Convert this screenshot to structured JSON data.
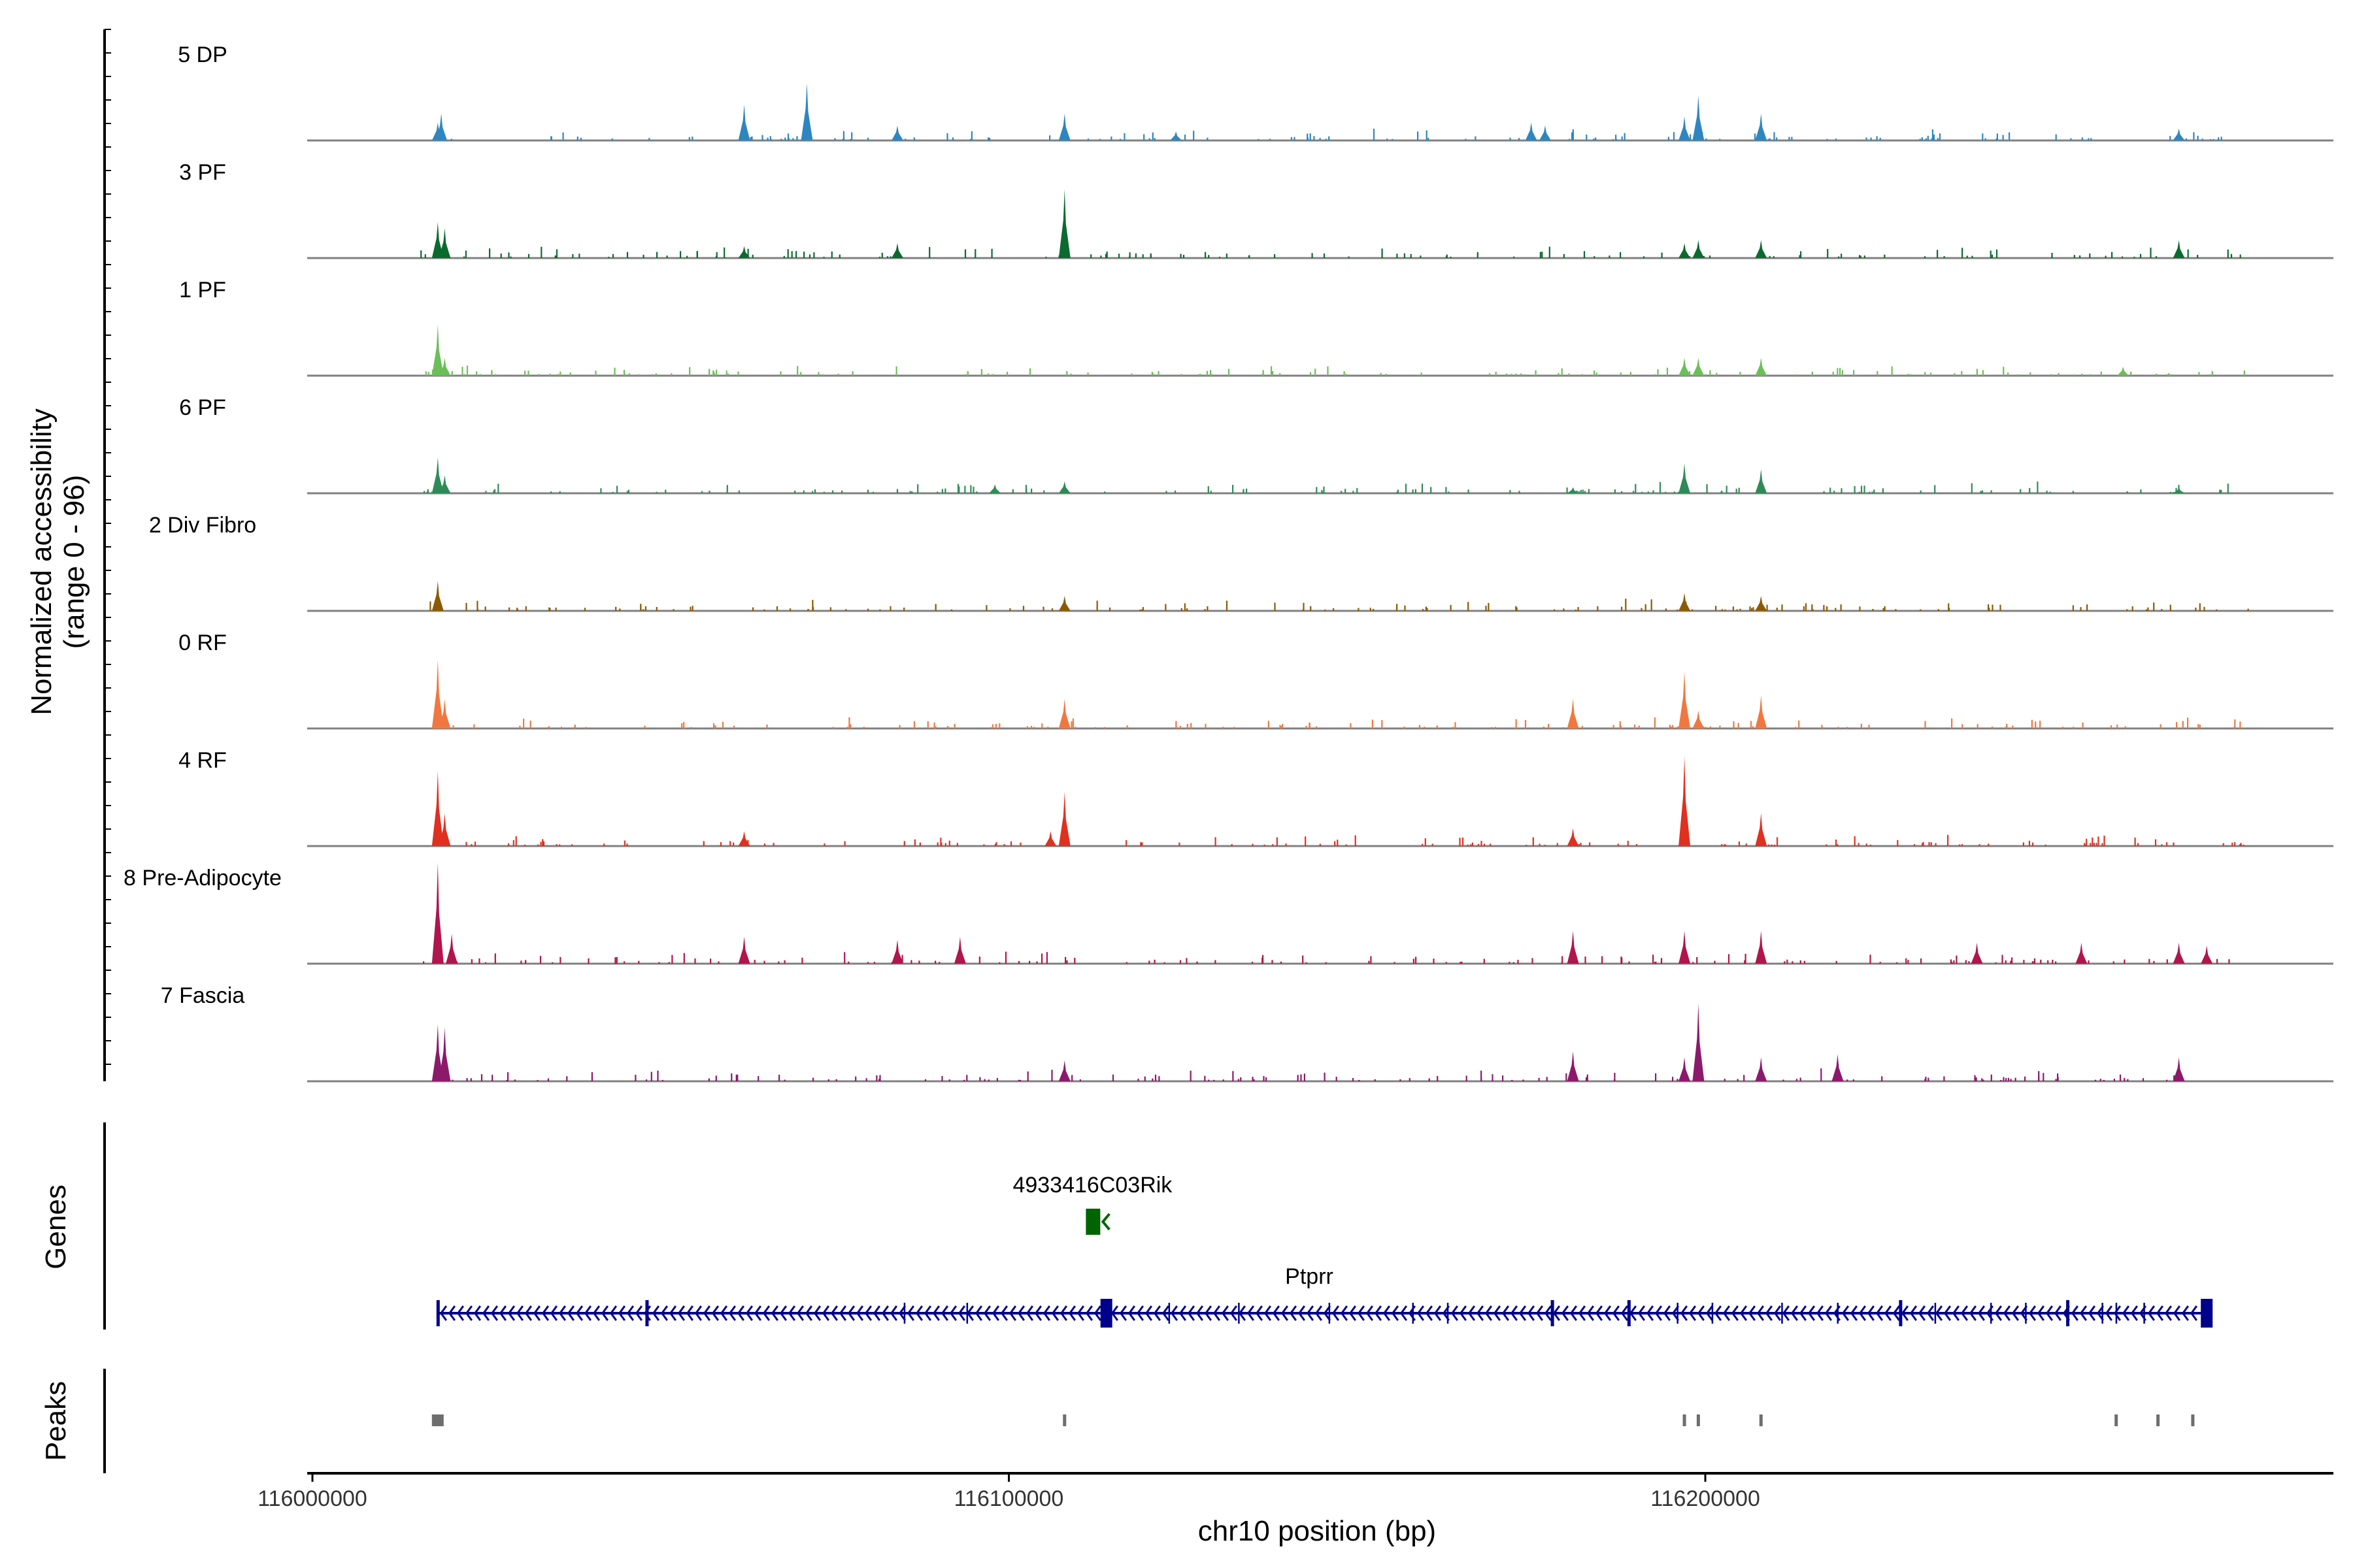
{
  "chart_data": {
    "type": "area",
    "title": "",
    "ylabel": "Normalized accessibility",
    "ylabel_range": "(range 0 - 96)",
    "xlabel": "chr10 position (bp)",
    "xlim": [
      115998000,
      116290000
    ],
    "ylim": [
      0,
      96
    ],
    "x_ticks": [
      "116000000",
      "116100000",
      "116200000"
    ],
    "x_tick_values": [
      116000000,
      116100000,
      116200000
    ],
    "baseline_color": "#808080",
    "series": [
      {
        "name": "5 DP",
        "color": "#2E86C1",
        "peaks": [
          [
            116018000,
            30
          ],
          [
            116018500,
            45
          ],
          [
            116062000,
            60
          ],
          [
            116071000,
            96
          ],
          [
            116084000,
            25
          ],
          [
            116108000,
            45
          ],
          [
            116124000,
            15
          ],
          [
            116175000,
            30
          ],
          [
            116177000,
            25
          ],
          [
            116197000,
            40
          ],
          [
            116199000,
            75
          ],
          [
            116208000,
            45
          ],
          [
            116268000,
            20
          ]
        ]
      },
      {
        "name": "3 PF",
        "color": "#0B6B2E",
        "peaks": [
          [
            116018000,
            60
          ],
          [
            116019000,
            50
          ],
          [
            116062000,
            20
          ],
          [
            116084000,
            25
          ],
          [
            116108000,
            115
          ],
          [
            116197000,
            25
          ],
          [
            116199000,
            30
          ],
          [
            116208000,
            30
          ],
          [
            116268000,
            30
          ]
        ]
      },
      {
        "name": "1 PF",
        "color": "#6BBF59",
        "peaks": [
          [
            116018000,
            85
          ],
          [
            116019000,
            30
          ],
          [
            116197000,
            30
          ],
          [
            116199000,
            30
          ],
          [
            116208000,
            30
          ],
          [
            116260000,
            15
          ]
        ]
      },
      {
        "name": "6 PF",
        "color": "#2E8B57",
        "peaks": [
          [
            116018000,
            60
          ],
          [
            116019000,
            30
          ],
          [
            116098000,
            15
          ],
          [
            116108000,
            20
          ],
          [
            116181000,
            10
          ],
          [
            116197000,
            50
          ],
          [
            116208000,
            40
          ],
          [
            116268000,
            10
          ]
        ]
      },
      {
        "name": "2 Div Fibro",
        "color": "#8B5A00",
        "peaks": [
          [
            116018000,
            50
          ],
          [
            116108000,
            25
          ],
          [
            116197000,
            30
          ],
          [
            116208000,
            25
          ]
        ]
      },
      {
        "name": "0 RF",
        "color": "#F07840",
        "peaks": [
          [
            116018000,
            115
          ],
          [
            116019000,
            50
          ],
          [
            116108000,
            50
          ],
          [
            116181000,
            50
          ],
          [
            116197000,
            95
          ],
          [
            116199000,
            30
          ],
          [
            116208000,
            55
          ]
        ]
      },
      {
        "name": "4 RF",
        "color": "#E03020",
        "peaks": [
          [
            116018000,
            125
          ],
          [
            116019000,
            55
          ],
          [
            116062000,
            25
          ],
          [
            116106000,
            25
          ],
          [
            116108000,
            90
          ],
          [
            116181000,
            30
          ],
          [
            116197000,
            150
          ],
          [
            116208000,
            55
          ]
        ]
      },
      {
        "name": "8 Pre-Adipocyte",
        "color": "#B0154B",
        "peaks": [
          [
            116018000,
            175
          ],
          [
            116020000,
            50
          ],
          [
            116062000,
            45
          ],
          [
            116084000,
            40
          ],
          [
            116093000,
            45
          ],
          [
            116181000,
            55
          ],
          [
            116197000,
            55
          ],
          [
            116208000,
            55
          ],
          [
            116239000,
            35
          ],
          [
            116254000,
            35
          ],
          [
            116268000,
            35
          ],
          [
            116272000,
            30
          ]
        ]
      },
      {
        "name": "7 Fascia",
        "color": "#8B1A6B",
        "peaks": [
          [
            116018000,
            95
          ],
          [
            116019000,
            90
          ],
          [
            116108000,
            35
          ],
          [
            116181000,
            50
          ],
          [
            116199000,
            130
          ],
          [
            116197000,
            40
          ],
          [
            116208000,
            40
          ],
          [
            116219000,
            45
          ],
          [
            116268000,
            40
          ]
        ]
      }
    ],
    "genes": {
      "label": "Genes",
      "items": [
        {
          "name": "4933416C03Rik",
          "start": 116112000,
          "end": 116114000,
          "color": "#006400"
        },
        {
          "name": "Ptprr",
          "start": 116018000,
          "end": 116272000,
          "color": "#00008B"
        }
      ]
    },
    "peaks_track": {
      "label": "Peaks",
      "color": "#6E6E6E",
      "positions": [
        116018000,
        116108000,
        116197000,
        116199000,
        116208000,
        116259000,
        116265000,
        116270000
      ]
    }
  }
}
